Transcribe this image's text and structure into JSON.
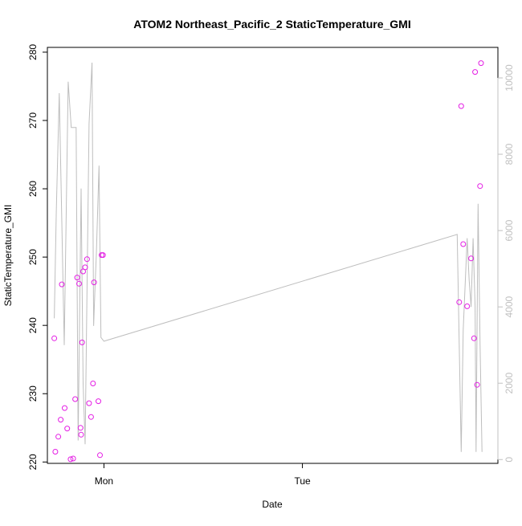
{
  "chart_data": {
    "type": "scatter",
    "title": "ATOM2 Northeast_Pacific_2 StaticTemperature_GMI",
    "xlabel": "Date",
    "ylabel": "StaticTemperature_GMI",
    "x_ticks": [
      {
        "label": "Mon",
        "value": 0
      },
      {
        "label": "Tue",
        "value": 1
      }
    ],
    "xlim": [
      -0.285,
      1.985
    ],
    "ylim": [
      219.8,
      280.7
    ],
    "y_ticks": [
      220,
      230,
      240,
      250,
      260,
      270,
      280
    ],
    "y2lim": [
      -100,
      10800
    ],
    "y2_ticks": [
      0,
      2000,
      4000,
      6000,
      8000,
      10000
    ],
    "grid": false,
    "legend": "none",
    "colors": {
      "points": "#e41ee4",
      "line": "#bebebe",
      "right_axis": "#c0c0c0"
    },
    "points": [
      {
        "x": -0.25,
        "y": 238.1
      },
      {
        "x": -0.245,
        "y": 221.5
      },
      {
        "x": -0.23,
        "y": 223.7
      },
      {
        "x": -0.218,
        "y": 226.2
      },
      {
        "x": -0.212,
        "y": 246.0
      },
      {
        "x": -0.198,
        "y": 227.9
      },
      {
        "x": -0.185,
        "y": 224.9
      },
      {
        "x": -0.168,
        "y": 220.4
      },
      {
        "x": -0.155,
        "y": 220.5
      },
      {
        "x": -0.145,
        "y": 229.2
      },
      {
        "x": -0.135,
        "y": 247.0
      },
      {
        "x": -0.125,
        "y": 246.1
      },
      {
        "x": -0.118,
        "y": 225.0
      },
      {
        "x": -0.115,
        "y": 224.0
      },
      {
        "x": -0.11,
        "y": 237.5
      },
      {
        "x": -0.105,
        "y": 247.9
      },
      {
        "x": -0.095,
        "y": 248.5
      },
      {
        "x": -0.085,
        "y": 249.7
      },
      {
        "x": -0.075,
        "y": 228.6
      },
      {
        "x": -0.065,
        "y": 226.6
      },
      {
        "x": -0.055,
        "y": 231.5
      },
      {
        "x": -0.05,
        "y": 246.3
      },
      {
        "x": -0.028,
        "y": 228.9
      },
      {
        "x": -0.02,
        "y": 221.0
      },
      {
        "x": -0.012,
        "y": 250.3
      },
      {
        "x": -0.005,
        "y": 250.3
      },
      {
        "x": 1.79,
        "y": 243.4
      },
      {
        "x": 1.8,
        "y": 272.1
      },
      {
        "x": 1.81,
        "y": 251.9
      },
      {
        "x": 1.83,
        "y": 242.8
      },
      {
        "x": 1.85,
        "y": 249.8
      },
      {
        "x": 1.865,
        "y": 238.1
      },
      {
        "x": 1.87,
        "y": 277.1
      },
      {
        "x": 1.88,
        "y": 231.3
      },
      {
        "x": 1.895,
        "y": 260.4
      },
      {
        "x": 1.9,
        "y": 278.4
      }
    ],
    "line_series_right_axis": [
      {
        "x": -0.25,
        "y": 3700
      },
      {
        "x": -0.24,
        "y": 6500
      },
      {
        "x": -0.225,
        "y": 9600
      },
      {
        "x": -0.2,
        "y": 3000
      },
      {
        "x": -0.18,
        "y": 9900
      },
      {
        "x": -0.165,
        "y": 8700
      },
      {
        "x": -0.15,
        "y": 8700
      },
      {
        "x": -0.14,
        "y": 8700
      },
      {
        "x": -0.13,
        "y": 500
      },
      {
        "x": -0.115,
        "y": 7100
      },
      {
        "x": -0.105,
        "y": 2000
      },
      {
        "x": -0.095,
        "y": 400
      },
      {
        "x": -0.075,
        "y": 8800
      },
      {
        "x": -0.06,
        "y": 10400
      },
      {
        "x": -0.052,
        "y": 3500
      },
      {
        "x": -0.045,
        "y": 4500
      },
      {
        "x": -0.038,
        "y": 5400
      },
      {
        "x": -0.025,
        "y": 7700
      },
      {
        "x": -0.015,
        "y": 3200
      },
      {
        "x": 0.0,
        "y": 3100
      },
      {
        "x": 1.78,
        "y": 5900
      },
      {
        "x": 1.8,
        "y": 200
      },
      {
        "x": 1.81,
        "y": 3400
      },
      {
        "x": 1.83,
        "y": 5800
      },
      {
        "x": 1.84,
        "y": 4700
      },
      {
        "x": 1.85,
        "y": 4000
      },
      {
        "x": 1.86,
        "y": 5800
      },
      {
        "x": 1.87,
        "y": 4000
      },
      {
        "x": 1.875,
        "y": 200
      },
      {
        "x": 1.885,
        "y": 6700
      },
      {
        "x": 1.895,
        "y": 3000
      },
      {
        "x": 1.905,
        "y": 200
      }
    ]
  }
}
